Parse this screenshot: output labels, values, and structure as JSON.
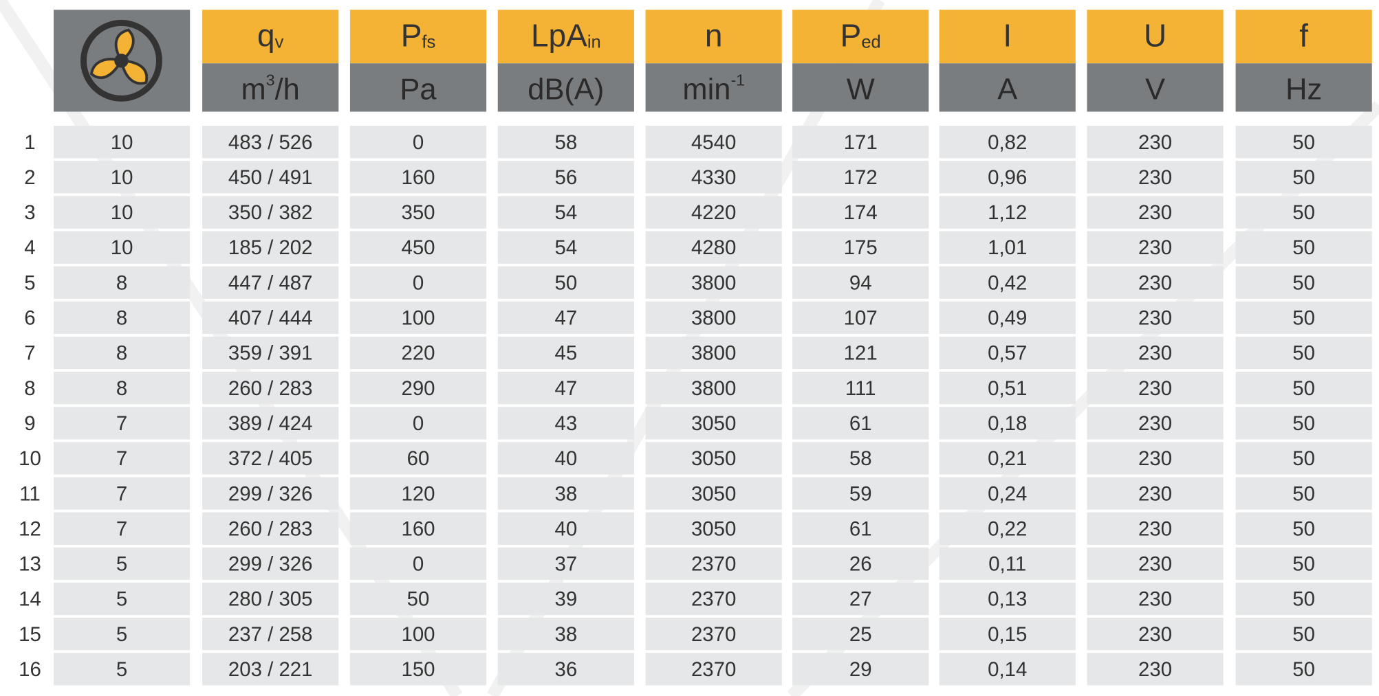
{
  "table": {
    "columns": [
      {
        "symbol": {
          "text": "q",
          "sub": "v"
        },
        "unit": {
          "text": "m",
          "sup": "3",
          "tail": "/h"
        }
      },
      {
        "symbol": {
          "text": "P",
          "sub": "fs"
        },
        "unit": {
          "text": "Pa"
        }
      },
      {
        "symbol": {
          "text": "LpA",
          "sub": "in"
        },
        "unit": {
          "text": "dB(A)"
        }
      },
      {
        "symbol": {
          "text": "n"
        },
        "unit": {
          "text": "min",
          "sup": "-1"
        }
      },
      {
        "symbol": {
          "text": "P",
          "sub": "ed"
        },
        "unit": {
          "text": "W"
        }
      },
      {
        "symbol": {
          "text": "I"
        },
        "unit": {
          "text": "A"
        }
      },
      {
        "symbol": {
          "text": "U"
        },
        "unit": {
          "text": "V"
        }
      },
      {
        "symbol": {
          "text": "f"
        },
        "unit": {
          "text": "Hz"
        }
      }
    ],
    "rows": [
      [
        "1",
        "10",
        "483 / 526",
        "0",
        "58",
        "4540",
        "171",
        "0,82",
        "230",
        "50"
      ],
      [
        "2",
        "10",
        "450 / 491",
        "160",
        "56",
        "4330",
        "172",
        "0,96",
        "230",
        "50"
      ],
      [
        "3",
        "10",
        "350 / 382",
        "350",
        "54",
        "4220",
        "174",
        "1,12",
        "230",
        "50"
      ],
      [
        "4",
        "10",
        "185 / 202",
        "450",
        "54",
        "4280",
        "175",
        "1,01",
        "230",
        "50"
      ],
      [
        "5",
        "8",
        "447 / 487",
        "0",
        "50",
        "3800",
        "94",
        "0,42",
        "230",
        "50"
      ],
      [
        "6",
        "8",
        "407 / 444",
        "100",
        "47",
        "3800",
        "107",
        "0,49",
        "230",
        "50"
      ],
      [
        "7",
        "8",
        "359 / 391",
        "220",
        "45",
        "3800",
        "121",
        "0,57",
        "230",
        "50"
      ],
      [
        "8",
        "8",
        "260 / 283",
        "290",
        "47",
        "3800",
        "111",
        "0,51",
        "230",
        "50"
      ],
      [
        "9",
        "7",
        "389 / 424",
        "0",
        "43",
        "3050",
        "61",
        "0,18",
        "230",
        "50"
      ],
      [
        "10",
        "7",
        "372 / 405",
        "60",
        "40",
        "3050",
        "58",
        "0,21",
        "230",
        "50"
      ],
      [
        "11",
        "7",
        "299 / 326",
        "120",
        "38",
        "3050",
        "59",
        "0,24",
        "230",
        "50"
      ],
      [
        "12",
        "7",
        "260 / 283",
        "160",
        "40",
        "3050",
        "61",
        "0,22",
        "230",
        "50"
      ],
      [
        "13",
        "5",
        "299 / 326",
        "0",
        "37",
        "2370",
        "26",
        "0,11",
        "230",
        "50"
      ],
      [
        "14",
        "5",
        "280 / 305",
        "50",
        "39",
        "2370",
        "27",
        "0,13",
        "230",
        "50"
      ],
      [
        "15",
        "5",
        "237 / 258",
        "100",
        "38",
        "2370",
        "25",
        "0,15",
        "230",
        "50"
      ],
      [
        "16",
        "5",
        "203 / 221",
        "150",
        "36",
        "2370",
        "29",
        "0,14",
        "230",
        "50"
      ]
    ]
  }
}
